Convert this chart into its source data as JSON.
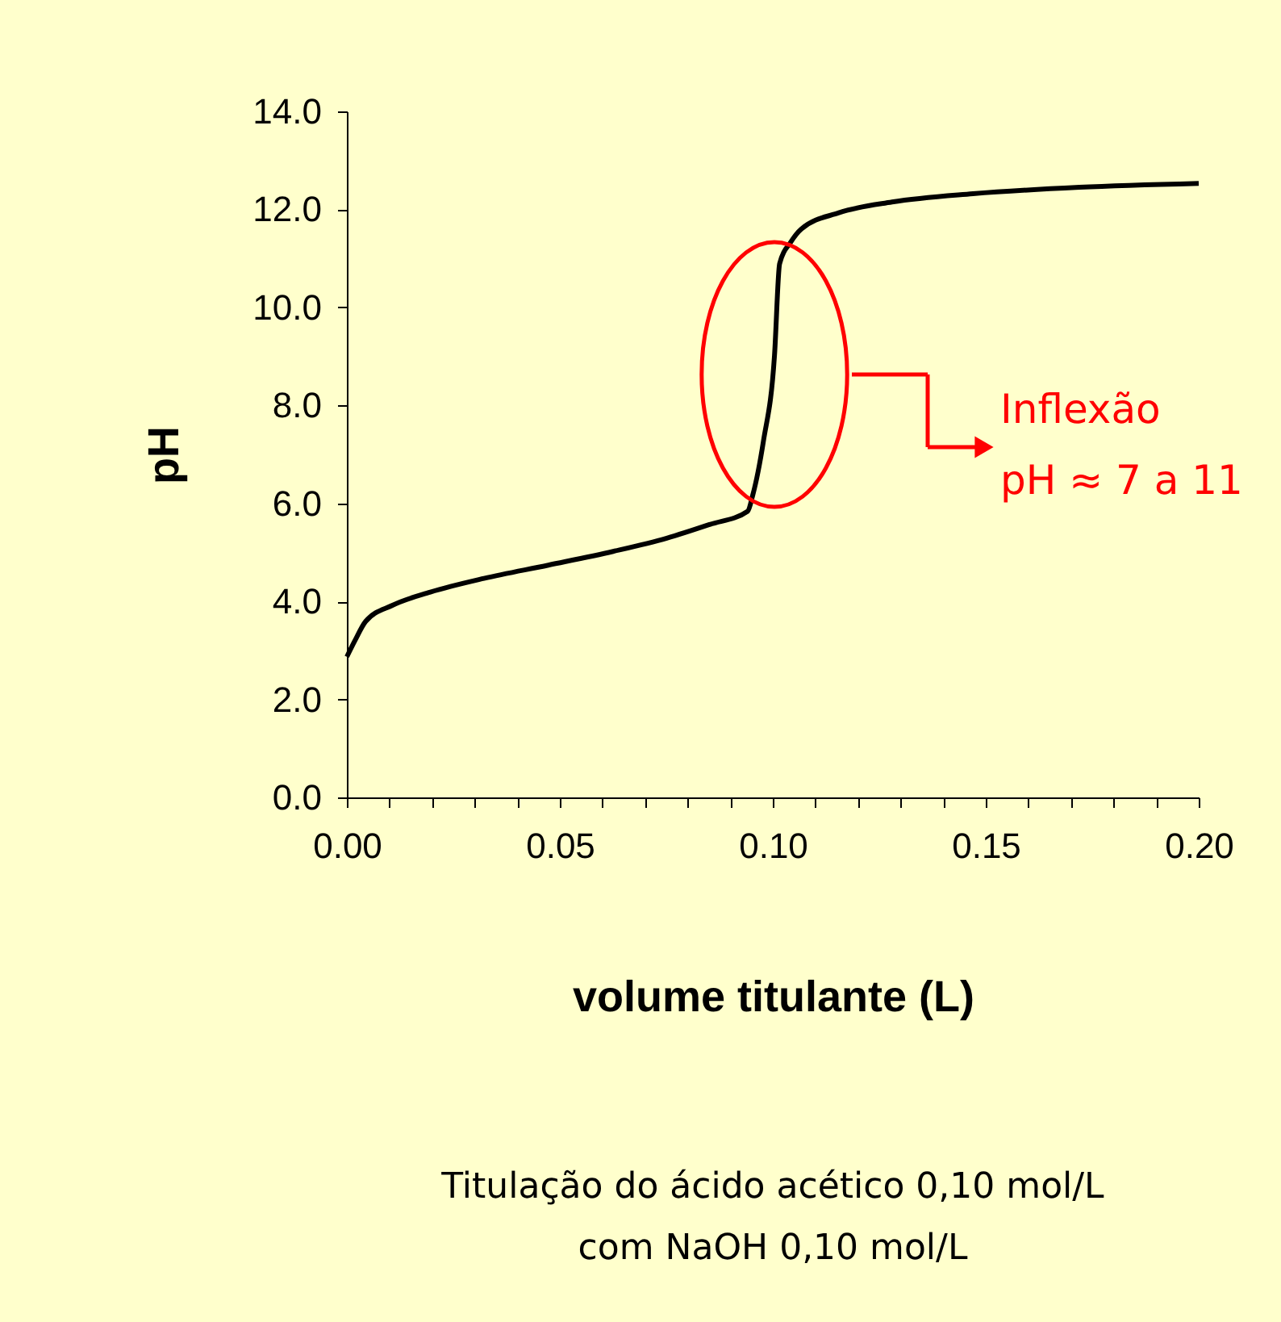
{
  "chart_data": {
    "type": "line",
    "xlabel": "volume titulante (L)",
    "ylabel": "pH",
    "x": [
      0,
      0.0019,
      0.0044,
      0.0107,
      0.0196,
      0.0322,
      0.0473,
      0.0625,
      0.0751,
      0.0852,
      0.0941,
      0.0953,
      0.0978,
      0.1004,
      0.1016,
      0.1042,
      0.1067,
      0.1155,
      0.128,
      0.147,
      0.172,
      0.2
    ],
    "series": [
      {
        "color": "#000000",
        "values": [
          2.87,
          3.2,
          3.59,
          3.92,
          4.19,
          4.47,
          4.74,
          5.02,
          5.29,
          5.57,
          5.84,
          6.17,
          7.27,
          9.02,
          10.89,
          11.33,
          11.6,
          11.93,
          12.15,
          12.32,
          12.45,
          12.53
        ]
      }
    ],
    "xlim": [
      0,
      0.2
    ],
    "xticks": [
      {
        "value": 0,
        "label": "0.00"
      },
      {
        "value": 0.01,
        "label": null
      },
      {
        "value": 0.02,
        "label": null
      },
      {
        "value": 0.03,
        "label": null
      },
      {
        "value": 0.04,
        "label": null
      },
      {
        "value": 0.05,
        "label": "0.05"
      },
      {
        "value": 0.06,
        "label": null
      },
      {
        "value": 0.07,
        "label": null
      },
      {
        "value": 0.08,
        "label": null
      },
      {
        "value": 0.09,
        "label": null
      },
      {
        "value": 0.1,
        "label": "0.10"
      },
      {
        "value": 0.11,
        "label": null
      },
      {
        "value": 0.12,
        "label": null
      },
      {
        "value": 0.13,
        "label": null
      },
      {
        "value": 0.14,
        "label": null
      },
      {
        "value": 0.15,
        "label": "0.15"
      },
      {
        "value": 0.16,
        "label": null
      },
      {
        "value": 0.17,
        "label": null
      },
      {
        "value": 0.18,
        "label": null
      },
      {
        "value": 0.19,
        "label": null
      },
      {
        "value": 0.2,
        "label": "0.20"
      }
    ],
    "ylim": [
      0,
      14
    ],
    "yticks": [
      {
        "value": 0,
        "label": "0.0"
      },
      {
        "value": 2,
        "label": "2.0"
      },
      {
        "value": 4,
        "label": "4.0"
      },
      {
        "value": 6,
        "label": "6.0"
      },
      {
        "value": 8,
        "label": "8.0"
      },
      {
        "value": 10,
        "label": "10.0"
      },
      {
        "value": 12,
        "label": "12.0"
      },
      {
        "value": 14,
        "label": "14.0"
      }
    ],
    "grid": false,
    "legend": false,
    "marker": "none",
    "line_style": "solid",
    "annotations": [
      "Inflexão\npH ≈ 7 a 11",
      "Titulação do ácido acético 0,10 mol/L\ncom NaOH 0,10 mol/L"
    ]
  }
}
